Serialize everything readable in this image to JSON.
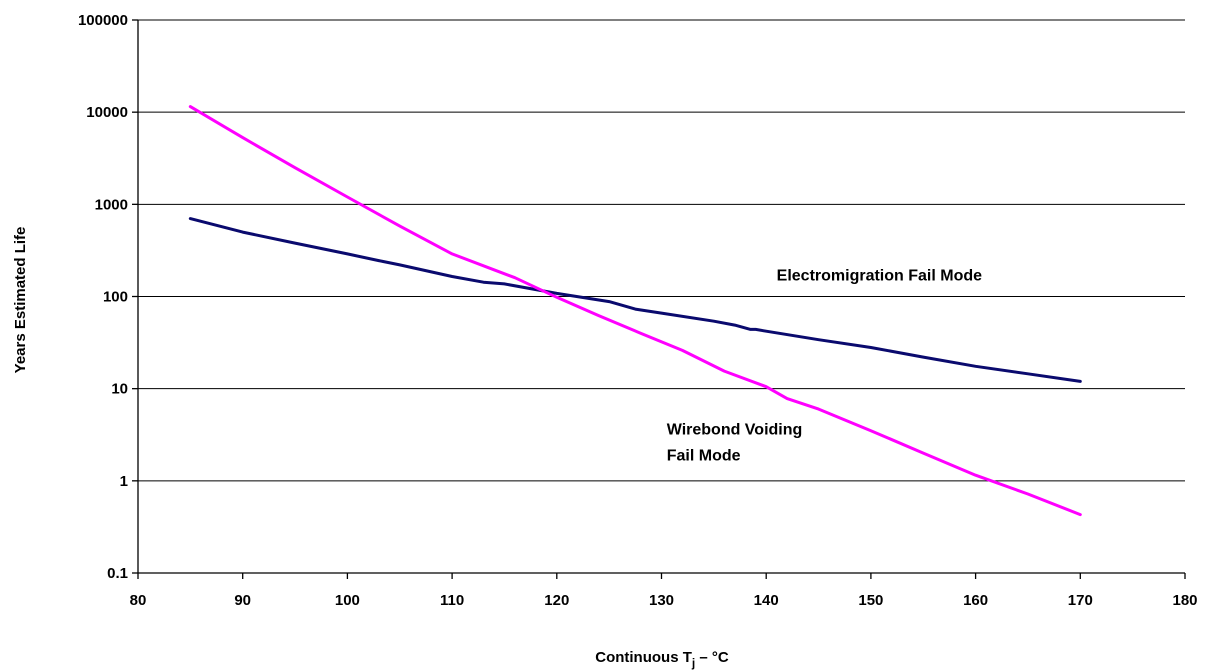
{
  "chart_data": {
    "type": "line",
    "title": "",
    "xlabel": {
      "prefix": "Continuous T",
      "subscript": "j",
      "suffix": " – °C"
    },
    "ylabel": "Years Estimated Life",
    "xlim": [
      80,
      180
    ],
    "ylim": [
      0.1,
      100000
    ],
    "yscale": "log",
    "grid": "horizontal",
    "x_ticks": [
      80,
      90,
      100,
      110,
      120,
      130,
      140,
      150,
      160,
      170,
      180
    ],
    "y_ticks": [
      0.1,
      1,
      10,
      100,
      1000,
      10000,
      100000
    ],
    "y_tick_labels": [
      "0.1",
      "1",
      "10",
      "100",
      "1000",
      "10000",
      "100000"
    ],
    "series": [
      {
        "name": "Electromigration Fail Mode",
        "color": "#0a0a6e",
        "x": [
          85,
          90,
          95,
          100,
          103,
          105,
          110,
          113,
          115,
          120,
          125,
          127.5,
          130,
          135,
          137,
          138.5,
          139,
          140,
          145,
          150,
          155,
          160,
          165,
          170
        ],
        "y": [
          700,
          500,
          380,
          290,
          245,
          220,
          165,
          143,
          137,
          108,
          88,
          73,
          66,
          54,
          49,
          44,
          44,
          42,
          34,
          28,
          22,
          17.5,
          14.5,
          12
        ]
      },
      {
        "name": "Wirebond Voiding Fail Mode",
        "color": "#ff00ff",
        "x": [
          85,
          90,
          95,
          100,
          105,
          110,
          114,
          116,
          120,
          124,
          128,
          132,
          136,
          140,
          142,
          145,
          150,
          155,
          160,
          165,
          170
        ],
        "y": [
          11500,
          5300,
          2500,
          1200,
          580,
          290,
          195,
          160,
          98,
          62,
          40,
          26,
          15.5,
          10.5,
          7.8,
          6,
          3.5,
          2.0,
          1.15,
          0.72,
          0.43
        ]
      }
    ],
    "annotations": [
      {
        "lines": [
          "Electromigration Fail Mode"
        ],
        "x": 141,
        "y": 150
      },
      {
        "lines": [
          "Wirebond Voiding",
          "Fail Mode"
        ],
        "x": 130.5,
        "y": 3.2
      }
    ]
  }
}
